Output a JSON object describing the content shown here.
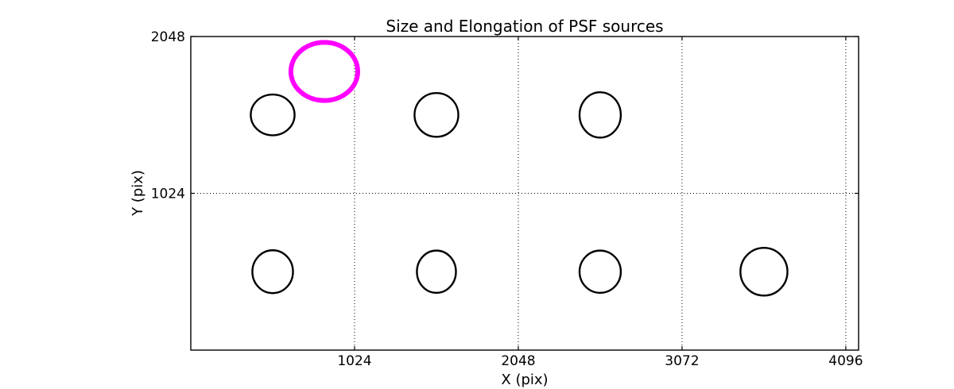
{
  "figure": {
    "background": "#ffffff"
  },
  "chart_data": {
    "type": "scatter",
    "title": "Size and Elongation of PSF sources",
    "xlabel": "X (pix)",
    "ylabel": "Y (pix)",
    "xlim": [
      0,
      4176
    ],
    "ylim": [
      0,
      2048
    ],
    "x_ticks": [
      1024,
      2048,
      3072,
      4096
    ],
    "y_ticks": [
      1024,
      2048
    ],
    "grid": "dotted",
    "legend": "none",
    "colors": {
      "axis": "#000000",
      "grid": "#000000",
      "source_normal": "#000000",
      "source_flagged": "#ff00ff"
    },
    "sources": [
      {
        "x": 512,
        "y": 1536,
        "rx": 137,
        "ry": 133,
        "type": "normal"
      },
      {
        "x": 1536,
        "y": 1536,
        "rx": 137,
        "ry": 143,
        "type": "normal"
      },
      {
        "x": 2560,
        "y": 1536,
        "rx": 129,
        "ry": 148,
        "type": "normal"
      },
      {
        "x": 835,
        "y": 1820,
        "rx": 209,
        "ry": 190,
        "type": "flagged"
      },
      {
        "x": 512,
        "y": 512,
        "rx": 127,
        "ry": 140,
        "type": "normal"
      },
      {
        "x": 1536,
        "y": 512,
        "rx": 122,
        "ry": 138,
        "type": "normal"
      },
      {
        "x": 2560,
        "y": 512,
        "rx": 129,
        "ry": 138,
        "type": "normal"
      },
      {
        "x": 3584,
        "y": 512,
        "rx": 147,
        "ry": 156,
        "type": "normal"
      }
    ]
  }
}
